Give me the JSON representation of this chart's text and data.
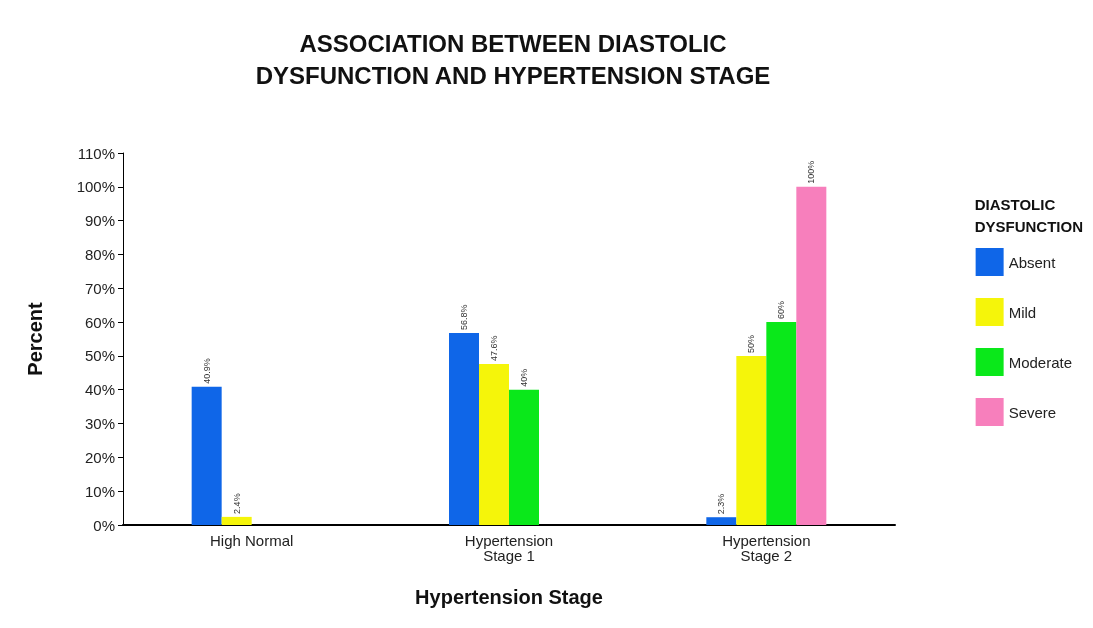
{
  "chart_data": {
    "type": "bar",
    "title": "ASSOCIATION BETWEEN DIASTOLIC\nDYSFUNCTION AND HYPERTENSION STAGE",
    "xlabel": "Hypertension Stage",
    "ylabel": "Percent",
    "legend_title": "DIASTOLIC\nDYSFUNCTION",
    "legend": "right",
    "categories": [
      "High Normal",
      "Hypertension\nStage 1",
      "Hypertension\nStage 2"
    ],
    "series": [
      {
        "name": "Absent",
        "color": "#0f66e8",
        "values": [
          40.9,
          56.8,
          2.3
        ],
        "value_labels": [
          "40.9%",
          "56.8%",
          "2.3%"
        ]
      },
      {
        "name": "Mild",
        "color": "#f5f50a",
        "values": [
          2.4,
          47.6,
          50
        ],
        "value_labels": [
          "2.4%",
          "47.6%",
          "50%"
        ]
      },
      {
        "name": "Moderate",
        "color": "#0ae81a",
        "values": [
          null,
          40,
          60
        ],
        "value_labels": [
          null,
          "40%",
          "60%"
        ]
      },
      {
        "name": "Severe",
        "color": "#f77fbc",
        "values": [
          null,
          null,
          100
        ],
        "value_labels": [
          null,
          null,
          "100%"
        ]
      }
    ],
    "ylim": [
      0,
      110
    ],
    "yticks": [
      {
        "value": 0,
        "label": "0%"
      },
      {
        "value": 10,
        "label": "10%"
      },
      {
        "value": 20,
        "label": "20%"
      },
      {
        "value": 30,
        "label": "30%"
      },
      {
        "value": 40,
        "label": "40%"
      },
      {
        "value": 50,
        "label": "50%"
      },
      {
        "value": 60,
        "label": "60%"
      },
      {
        "value": 70,
        "label": "70%"
      },
      {
        "value": 80,
        "label": "80%"
      },
      {
        "value": 90,
        "label": "90%"
      },
      {
        "value": 100,
        "label": "100%"
      },
      {
        "value": 110,
        "label": "110%"
      }
    ],
    "grid": false
  }
}
